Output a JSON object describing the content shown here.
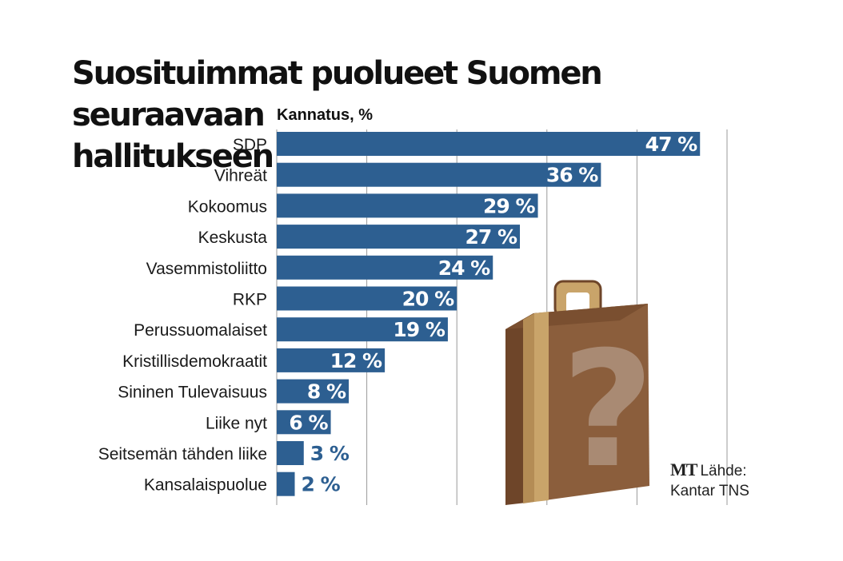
{
  "title_line1": "Suosituimmat puolueet Suomen seuraavaan",
  "title_line2": "hallitukseen",
  "subtitle": "Kannatus, %",
  "source": {
    "logo": "MT",
    "label": "Lähde:",
    "name": "Kantar TNS"
  },
  "colors": {
    "bar": "#2d5f91",
    "grid": "#9a9a9a",
    "label_inside": "#ffffff",
    "label_outside": "#2d5f91",
    "suitcase_body": "#8b5e3c",
    "suitcase_side": "#6e4529",
    "suitcase_stripe": "#c9a46a",
    "question_mark": "#a98a73"
  },
  "chart_data": {
    "type": "bar",
    "orientation": "horizontal",
    "title": "Suosituimmat puolueet Suomen seuraavaan hallitukseen",
    "xlabel": "Kannatus, %",
    "ylabel": "",
    "xlim": [
      0,
      50
    ],
    "grid": true,
    "categories": [
      "SDP",
      "Vihreät",
      "Kokoomus",
      "Keskusta",
      "Vasemmistoliitto",
      "RKP",
      "Perussuomalaiset",
      "Kristillisdemokraatit",
      "Sininen Tulevaisuus",
      "Liike nyt",
      "Seitsemän tähden liike",
      "Kansalaispuolue"
    ],
    "values": [
      47,
      36,
      29,
      27,
      24,
      20,
      19,
      12,
      8,
      6,
      3,
      2
    ],
    "value_labels": [
      "47 %",
      "36 %",
      "29 %",
      "27 %",
      "24 %",
      "20 %",
      "19 %",
      "12 %",
      "8 %",
      "6 %",
      "3 %",
      "2 %"
    ]
  }
}
